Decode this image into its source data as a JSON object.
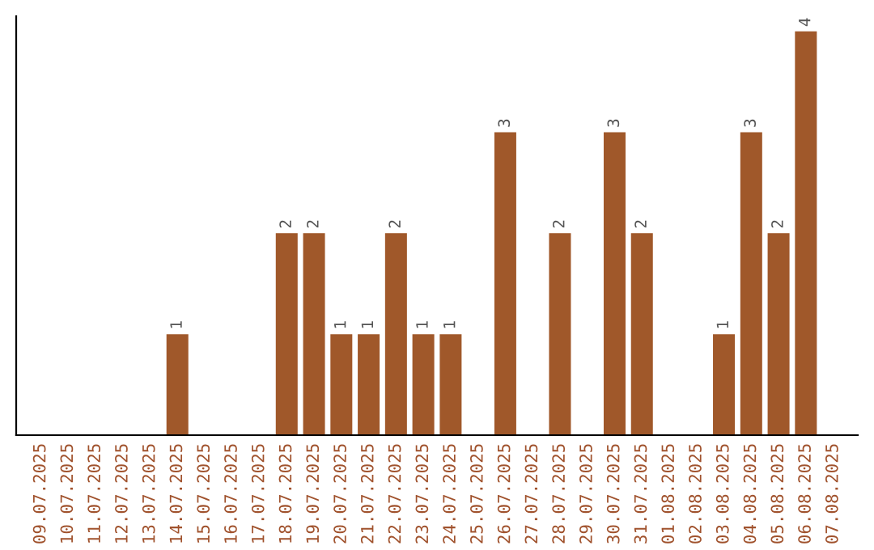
{
  "chart_data": {
    "type": "bar",
    "categories": [
      "09.07.2025",
      "10.07.2025",
      "11.07.2025",
      "12.07.2025",
      "13.07.2025",
      "14.07.2025",
      "15.07.2025",
      "16.07.2025",
      "17.07.2025",
      "18.07.2025",
      "19.07.2025",
      "20.07.2025",
      "21.07.2025",
      "22.07.2025",
      "23.07.2025",
      "24.07.2025",
      "25.07.2025",
      "26.07.2025",
      "27.07.2025",
      "28.07.2025",
      "29.07.2025",
      "30.07.2025",
      "31.07.2025",
      "01.08.2025",
      "02.08.2025",
      "03.08.2025",
      "04.08.2025",
      "05.08.2025",
      "06.08.2025",
      "07.08.2025"
    ],
    "values": [
      0,
      0,
      0,
      0,
      0,
      1,
      0,
      0,
      0,
      2,
      2,
      1,
      1,
      2,
      1,
      1,
      0,
      3,
      0,
      2,
      0,
      3,
      2,
      0,
      0,
      1,
      3,
      2,
      4,
      0
    ],
    "value_labels": [
      null,
      null,
      null,
      null,
      null,
      "1",
      null,
      null,
      null,
      "2",
      "2",
      "1",
      "1",
      "2",
      "1",
      "1",
      null,
      "3",
      null,
      "2",
      null,
      "3",
      "2",
      null,
      null,
      "1",
      "3",
      "2",
      "4",
      null
    ],
    "color": "#a0582a",
    "ylim": [
      0,
      4.15
    ],
    "tick_labels": "x",
    "grid": false,
    "legend": false
  }
}
